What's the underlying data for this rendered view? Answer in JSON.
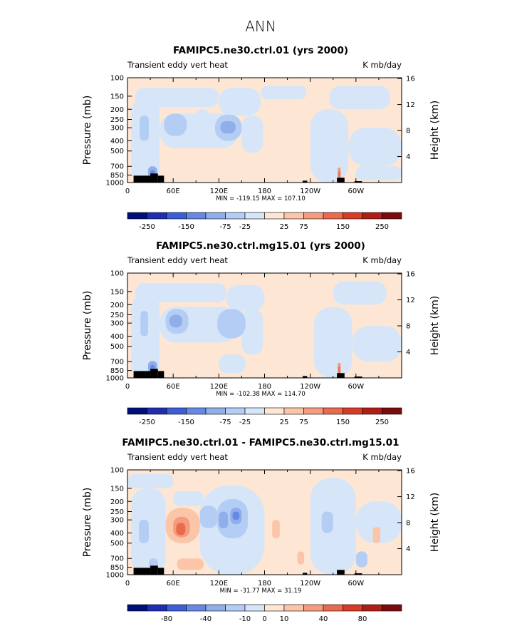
{
  "figure": {
    "suptitle": "ANN",
    "colors": {
      "pos1": "#fde6d4",
      "pos2": "#fbc6a8",
      "pos3": "#f49d7e",
      "pos4": "#ea6a4d",
      "pos5": "#d93b24",
      "pos6": "#b01d15",
      "pos7": "#7a0c0c",
      "neg1": "#d6e6f8",
      "neg2": "#b4cdf4",
      "neg3": "#8faeea",
      "neg4": "#6789e6",
      "neg5": "#3c5ed9",
      "neg6": "#1d2fb0",
      "neg7": "#000e7a"
    }
  },
  "chart_data": [
    {
      "type": "heatmap",
      "title": "FAMIPC5.ne30.ctrl.01 (yrs 2000)",
      "left_label": "Transient eddy vert heat",
      "right_label": "K mb/day",
      "ylabel": "Pressure (mb)",
      "ylabel_right": "Height (km)",
      "x_ticks": [
        "0",
        "60E",
        "120E",
        "180",
        "120W",
        "60W"
      ],
      "x_tick_values": [
        0,
        60,
        120,
        180,
        240,
        300
      ],
      "xlim": [
        0,
        360
      ],
      "y_ticks": [
        "100",
        "150",
        "200",
        "250",
        "300",
        "400",
        "500",
        "700",
        "850",
        "1000"
      ],
      "y_tick_values": [
        100,
        150,
        200,
        250,
        300,
        400,
        500,
        700,
        850,
        1000
      ],
      "ylim": [
        100,
        1000
      ],
      "y2_ticks": [
        "4",
        "8",
        "12",
        "16"
      ],
      "y2_tick_values": [
        4,
        8,
        12,
        16
      ],
      "background_level": "pos1",
      "features": [
        {
          "lon": [
            10,
            120
          ],
          "p": [
            125,
            190
          ],
          "level": "neg1"
        },
        {
          "lon": [
            120,
            175
          ],
          "p": [
            125,
            230
          ],
          "level": "neg1"
        },
        {
          "lon": [
            175,
            235
          ],
          "p": [
            120,
            160
          ],
          "level": "neg1"
        },
        {
          "lon": [
            265,
            345
          ],
          "p": [
            120,
            200
          ],
          "level": "neg1"
        },
        {
          "lon": [
            5,
            42
          ],
          "p": [
            160,
            1000
          ],
          "level": "neg1"
        },
        {
          "lon": [
            42,
            145
          ],
          "p": [
            220,
            470
          ],
          "level": "neg1"
        },
        {
          "lon": [
            150,
            178
          ],
          "p": [
            230,
            520
          ],
          "level": "neg1"
        },
        {
          "lon": [
            240,
            290
          ],
          "p": [
            200,
            1000
          ],
          "level": "neg1"
        },
        {
          "lon": [
            290,
            360
          ],
          "p": [
            300,
            700
          ],
          "level": "neg1"
        },
        {
          "lon": [
            300,
            360
          ],
          "p": [
            700,
            950
          ],
          "level": "neg1"
        },
        {
          "lon": [
            88,
            108
          ],
          "p": [
            200,
            330
          ],
          "level": "neg1"
        },
        {
          "lon": [
            48,
            78
          ],
          "p": [
            220,
            360
          ],
          "level": "neg2"
        },
        {
          "lon": [
            16,
            28
          ],
          "p": [
            230,
            400
          ],
          "level": "neg2"
        },
        {
          "lon": [
            115,
            150
          ],
          "p": [
            225,
            400
          ],
          "level": "neg2"
        },
        {
          "lon": [
            122,
            142
          ],
          "p": [
            260,
            340
          ],
          "level": "neg3"
        },
        {
          "lon": [
            27,
            39
          ],
          "p": [
            700,
            900
          ],
          "level": "neg3"
        },
        {
          "lon": [
            30,
            36
          ],
          "p": [
            760,
            860
          ],
          "level": "neg4"
        },
        {
          "lon": [
            276,
            280
          ],
          "p": [
            720,
            950
          ],
          "level": "pos3"
        },
        {
          "lon": [
            277,
            279
          ],
          "p": [
            780,
            900
          ],
          "level": "pos4"
        }
      ],
      "stats": {
        "min": -119.15,
        "max": 107.1,
        "text": "MIN = -119.15   MAX = 107.10"
      },
      "colorbar_ticks": [
        "-250",
        "-150",
        "-75",
        "-25",
        "25",
        "75",
        "150",
        "250"
      ]
    },
    {
      "type": "heatmap",
      "title": "FAMIPC5.ne30.ctrl.mg15.01 (yrs 2000)",
      "left_label": "Transient eddy vert heat",
      "right_label": "K mb/day",
      "ylabel": "Pressure (mb)",
      "ylabel_right": "Height (km)",
      "x_ticks": [
        "0",
        "60E",
        "120E",
        "180",
        "120W",
        "60W"
      ],
      "x_tick_values": [
        0,
        60,
        120,
        180,
        240,
        300
      ],
      "xlim": [
        0,
        360
      ],
      "y_ticks": [
        "100",
        "150",
        "200",
        "250",
        "300",
        "400",
        "500",
        "700",
        "850",
        "1000"
      ],
      "y_tick_values": [
        100,
        150,
        200,
        250,
        300,
        400,
        500,
        700,
        850,
        1000
      ],
      "ylim": [
        100,
        1000
      ],
      "y2_ticks": [
        "4",
        "8",
        "12",
        "16"
      ],
      "y2_tick_values": [
        4,
        8,
        12,
        16
      ],
      "background_level": "pos1",
      "features": [
        {
          "lon": [
            10,
            130
          ],
          "p": [
            125,
            190
          ],
          "level": "neg1"
        },
        {
          "lon": [
            130,
            180
          ],
          "p": [
            130,
            230
          ],
          "level": "neg1"
        },
        {
          "lon": [
            270,
            340
          ],
          "p": [
            120,
            200
          ],
          "level": "neg1"
        },
        {
          "lon": [
            5,
            42
          ],
          "p": [
            160,
            1000
          ],
          "level": "neg1"
        },
        {
          "lon": [
            42,
            145
          ],
          "p": [
            210,
            460
          ],
          "level": "neg1"
        },
        {
          "lon": [
            150,
            178
          ],
          "p": [
            220,
            600
          ],
          "level": "neg1"
        },
        {
          "lon": [
            245,
            295
          ],
          "p": [
            210,
            1000
          ],
          "level": "neg1"
        },
        {
          "lon": [
            295,
            360
          ],
          "p": [
            320,
            700
          ],
          "level": "neg1"
        },
        {
          "lon": [
            120,
            155
          ],
          "p": [
            600,
            900
          ],
          "level": "neg1"
        },
        {
          "lon": [
            50,
            80
          ],
          "p": [
            220,
            380
          ],
          "level": "neg2"
        },
        {
          "lon": [
            118,
            155
          ],
          "p": [
            220,
            420
          ],
          "level": "neg2"
        },
        {
          "lon": [
            55,
            72
          ],
          "p": [
            250,
            330
          ],
          "level": "neg3"
        },
        {
          "lon": [
            17,
            27
          ],
          "p": [
            230,
            400
          ],
          "level": "neg2"
        },
        {
          "lon": [
            27,
            39
          ],
          "p": [
            690,
            900
          ],
          "level": "neg3"
        },
        {
          "lon": [
            30,
            36
          ],
          "p": [
            750,
            860
          ],
          "level": "neg4"
        },
        {
          "lon": [
            276,
            280
          ],
          "p": [
            720,
            950
          ],
          "level": "pos3"
        },
        {
          "lon": [
            277,
            279
          ],
          "p": [
            780,
            900
          ],
          "level": "pos4"
        }
      ],
      "stats": {
        "min": -102.38,
        "max": 114.7,
        "text": "MIN = -102.38   MAX = 114.70"
      },
      "colorbar_ticks": [
        "-250",
        "-150",
        "-75",
        "-25",
        "25",
        "75",
        "150",
        "250"
      ]
    },
    {
      "type": "heatmap",
      "title": "FAMIPC5.ne30.ctrl.01 - FAMIPC5.ne30.ctrl.mg15.01",
      "left_label": "Transient eddy vert heat",
      "right_label": "K mb/day",
      "ylabel": "Pressure (mb)",
      "ylabel_right": "Height (km)",
      "x_ticks": [
        "0",
        "60E",
        "120E",
        "180",
        "120W",
        "60W"
      ],
      "x_tick_values": [
        0,
        60,
        120,
        180,
        240,
        300
      ],
      "xlim": [
        0,
        360
      ],
      "y_ticks": [
        "100",
        "150",
        "200",
        "250",
        "300",
        "400",
        "500",
        "700",
        "850",
        "1000"
      ],
      "y_tick_values": [
        100,
        150,
        200,
        250,
        300,
        400,
        500,
        700,
        850,
        1000
      ],
      "ylim": [
        100,
        1000
      ],
      "y2_ticks": [
        "4",
        "8",
        "12",
        "16"
      ],
      "y2_tick_values": [
        4,
        8,
        12,
        16
      ],
      "background_level": "pos1",
      "features": [
        {
          "lon": [
            0,
            60
          ],
          "p": [
            110,
            150
          ],
          "level": "neg1"
        },
        {
          "lon": [
            5,
            50
          ],
          "p": [
            150,
            1000
          ],
          "level": "neg1"
        },
        {
          "lon": [
            95,
            180
          ],
          "p": [
            140,
            1000
          ],
          "level": "neg1"
        },
        {
          "lon": [
            240,
            300
          ],
          "p": [
            120,
            1000
          ],
          "level": "neg1"
        },
        {
          "lon": [
            300,
            360
          ],
          "p": [
            200,
            500
          ],
          "level": "neg1"
        },
        {
          "lon": [
            60,
            100
          ],
          "p": [
            160,
            220
          ],
          "level": "neg1"
        },
        {
          "lon": [
            95,
            118
          ],
          "p": [
            220,
            360
          ],
          "level": "neg2"
        },
        {
          "lon": [
            118,
            158
          ],
          "p": [
            190,
            450
          ],
          "level": "neg2"
        },
        {
          "lon": [
            135,
            150
          ],
          "p": [
            230,
            330
          ],
          "level": "neg3"
        },
        {
          "lon": [
            120,
            132
          ],
          "p": [
            250,
            360
          ],
          "level": "neg3"
        },
        {
          "lon": [
            138,
            147
          ],
          "p": [
            250,
            300
          ],
          "level": "neg4"
        },
        {
          "lon": [
            15,
            28
          ],
          "p": [
            300,
            500
          ],
          "level": "neg2"
        },
        {
          "lon": [
            255,
            270
          ],
          "p": [
            250,
            400
          ],
          "level": "neg2"
        },
        {
          "lon": [
            300,
            315
          ],
          "p": [
            600,
            850
          ],
          "level": "neg2"
        },
        {
          "lon": [
            50,
            95
          ],
          "p": [
            230,
            500
          ],
          "level": "pos2"
        },
        {
          "lon": [
            60,
            82
          ],
          "p": [
            280,
            440
          ],
          "level": "pos3"
        },
        {
          "lon": [
            64,
            76
          ],
          "p": [
            320,
            420
          ],
          "level": "pos4"
        },
        {
          "lon": [
            65,
            100
          ],
          "p": [
            700,
            900
          ],
          "level": "pos2"
        },
        {
          "lon": [
            190,
            200
          ],
          "p": [
            300,
            450
          ],
          "level": "pos2"
        },
        {
          "lon": [
            322,
            332
          ],
          "p": [
            350,
            500
          ],
          "level": "pos2"
        },
        {
          "lon": [
            223,
            232
          ],
          "p": [
            600,
            800
          ],
          "level": "pos2"
        },
        {
          "lon": [
            28,
            40
          ],
          "p": [
            700,
            900
          ],
          "level": "neg2"
        }
      ],
      "stats": {
        "min": -31.77,
        "max": 31.19,
        "text": "MIN = -31.77   MAX =  31.19"
      },
      "colorbar_ticks": [
        "-80",
        "-40",
        "-10",
        "0",
        "10",
        "40",
        "80"
      ]
    }
  ]
}
